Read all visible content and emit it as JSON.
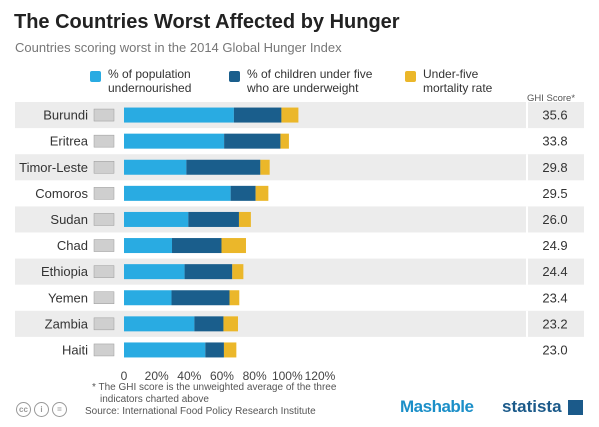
{
  "header": {
    "title": "The Countries Worst Affected by Hunger",
    "subtitle": "Countries scoring worst in the 2014 Global Hunger Index"
  },
  "legend": [
    {
      "line1": "% of population",
      "line2": "undernourished",
      "color": "#29abe2"
    },
    {
      "line1": "% of children under five",
      "line2": "who are underweight",
      "color": "#1a5e8c"
    },
    {
      "line1": "Under-five",
      "line2": "mortality rate",
      "color": "#ebb72a"
    }
  ],
  "ghi_header": "GHI Score*",
  "footnote": {
    "line1": "* The GHI score is the unweighted average of the three",
    "line2": "indicators charted above"
  },
  "source": "Source: International Food Policy Research Institute",
  "brands": {
    "mashable": "Mashable",
    "statista": "statista"
  },
  "icons": [
    "cc-icon",
    "by-icon",
    "equal-icon"
  ],
  "chart_data": {
    "type": "bar",
    "stacked": true,
    "orientation": "horizontal",
    "categories": [
      "Burundi",
      "Eritrea",
      "Timor-Leste",
      "Comoros",
      "Sudan",
      "Chad",
      "Ethiopia",
      "Yemen",
      "Zambia",
      "Haiti"
    ],
    "series": [
      {
        "name": "% of population undernourished",
        "color": "#29abe2",
        "values": [
          67.3,
          61.3,
          38.2,
          65.3,
          39.4,
          29.4,
          37.1,
          29.1,
          43.1,
          49.8
        ]
      },
      {
        "name": "% of children under five who are underweight",
        "color": "#1a5e8c",
        "values": [
          29.1,
          34.5,
          45.3,
          15.3,
          31.0,
          30.3,
          29.2,
          35.5,
          17.8,
          11.4
        ]
      },
      {
        "name": "Under-five mortality rate",
        "color": "#ebb72a",
        "values": [
          10.4,
          5.2,
          5.7,
          7.8,
          7.3,
          15.0,
          6.8,
          6.0,
          8.9,
          7.6
        ]
      }
    ],
    "ghi_scores": [
      "35.6",
      "33.8",
      "29.8",
      "29.5",
      "26.0",
      "24.9",
      "24.4",
      "23.4",
      "23.2",
      "23.0"
    ],
    "xlim": [
      0,
      120
    ],
    "xticks": [
      "0",
      "20%",
      "40%",
      "60%",
      "80%",
      "100%",
      "120%"
    ],
    "xtick_values": [
      0,
      20,
      40,
      60,
      80,
      100,
      120
    ],
    "grid": false,
    "legend_position": "top",
    "row_striping": true
  }
}
